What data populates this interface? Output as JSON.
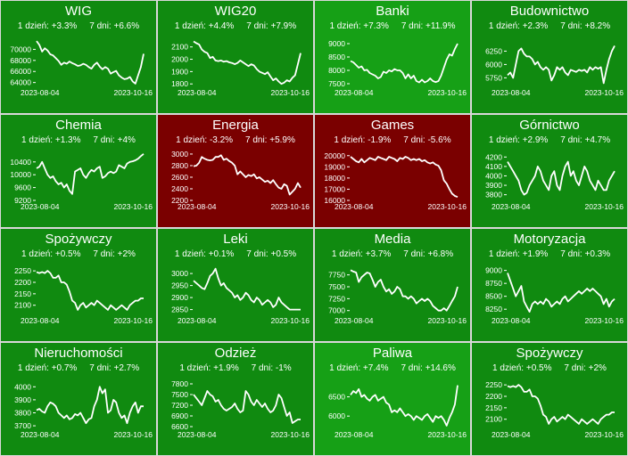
{
  "colors": {
    "green_dark": "#0b6b0b",
    "green_mid": "#0f8a0f",
    "green_bright": "#16a016",
    "red_dark": "#7a0000",
    "line": "#ffffff"
  },
  "labels": {
    "day_prefix": "1 dzień: ",
    "week_prefix": "7 dni: "
  },
  "chart_data": [
    {
      "type": "line",
      "title": "WIG",
      "change_1d": "+3.3%",
      "change_7d": "+6.6%",
      "color": "#108a10",
      "x_start": "2023-08-04",
      "x_end": "2023-10-16",
      "yticks": [
        64000,
        66000,
        68000,
        70000
      ],
      "ylim": [
        63300,
        72000
      ],
      "values": [
        71500,
        70800,
        69600,
        70200,
        69800,
        69100,
        68900,
        68400,
        67900,
        67200,
        67600,
        67400,
        67800,
        67500,
        67300,
        67000,
        67100,
        67400,
        67200,
        66800,
        66500,
        67200,
        67600,
        66900,
        66400,
        66800,
        66500,
        65600,
        65900,
        66100,
        65300,
        64900,
        64600,
        64700,
        65000,
        64200,
        63800,
        65300,
        66800,
        69200
      ]
    },
    {
      "type": "line",
      "title": "WIG20",
      "change_1d": "+4.4%",
      "change_7d": "+7.9%",
      "color": "#108a10",
      "x_start": "2023-08-04",
      "x_end": "2023-10-16",
      "yticks": [
        1800,
        1900,
        2000,
        2100
      ],
      "ylim": [
        1780,
        2170
      ],
      "values": [
        2145,
        2130,
        2120,
        2080,
        2060,
        2050,
        2010,
        2020,
        1990,
        1985,
        1990,
        1980,
        1985,
        1975,
        1970,
        1960,
        1970,
        1990,
        1975,
        1960,
        1945,
        1960,
        1950,
        1920,
        1900,
        1890,
        1880,
        1895,
        1860,
        1830,
        1845,
        1820,
        1800,
        1810,
        1830,
        1820,
        1850,
        1870,
        1960,
        2050
      ]
    },
    {
      "type": "line",
      "title": "Banki",
      "change_1d": "+7.3%",
      "change_7d": "+11.9%",
      "color": "#16a016",
      "x_start": "2023-08-04",
      "x_end": "2023-10-16",
      "yticks": [
        7500,
        8000,
        8500,
        9000
      ],
      "ylim": [
        7400,
        9200
      ],
      "values": [
        8350,
        8300,
        8200,
        8100,
        8150,
        8000,
        8020,
        7900,
        7850,
        7800,
        7700,
        7750,
        7950,
        7900,
        8000,
        7960,
        8050,
        8000,
        8000,
        7900,
        7700,
        7850,
        7700,
        7800,
        7600,
        7550,
        7650,
        7550,
        7600,
        7700,
        7600,
        7560,
        7600,
        7800,
        8100,
        8400,
        8600,
        8550,
        8800,
        9000
      ]
    },
    {
      "type": "line",
      "title": "Budownictwo",
      "change_1d": "+2.3%",
      "change_7d": "+8.2%",
      "color": "#108a10",
      "x_start": "2023-08-04",
      "x_end": "2023-10-16",
      "yticks": [
        5750,
        6000,
        6250
      ],
      "ylim": [
        5590,
        6490
      ],
      "values": [
        5800,
        5850,
        5750,
        6000,
        6250,
        6300,
        6200,
        6150,
        6150,
        6100,
        6000,
        6050,
        5950,
        5900,
        5950,
        5900,
        5700,
        5800,
        5950,
        5900,
        5950,
        5850,
        5800,
        5900,
        5880,
        5860,
        5900,
        5880,
        5900,
        5850,
        5950,
        5900,
        5950,
        5920,
        5950,
        5650,
        5900,
        6100,
        6250,
        6350
      ]
    },
    {
      "type": "line",
      "title": "Chemia",
      "change_1d": "+1.3%",
      "change_7d": "+4%",
      "color": "#108a10",
      "x_start": "2023-08-04",
      "x_end": "2023-10-16",
      "yticks": [
        9200,
        9600,
        10000,
        10400
      ],
      "ylim": [
        9200,
        10700
      ],
      "values": [
        10200,
        10250,
        10400,
        10200,
        10000,
        9900,
        9950,
        9800,
        9700,
        9750,
        9600,
        9700,
        9500,
        9400,
        10100,
        10150,
        10200,
        10000,
        9900,
        10050,
        10150,
        10100,
        10200,
        10250,
        9900,
        9950,
        10050,
        10100,
        10050,
        10100,
        10300,
        10250,
        10200,
        10350,
        10400,
        10420,
        10450,
        10500,
        10580,
        10650
      ]
    },
    {
      "type": "line",
      "title": "Energia",
      "change_1d": "-3.2%",
      "change_7d": "+5.9%",
      "color": "#7a0000",
      "x_start": "2023-08-04",
      "x_end": "2023-10-16",
      "yticks": [
        2200,
        2400,
        2600,
        2800,
        3000
      ],
      "ylim": [
        2200,
        3030
      ],
      "values": [
        2790,
        2800,
        2850,
        2950,
        2920,
        2900,
        2890,
        2900,
        2950,
        2950,
        2980,
        2900,
        2920,
        2880,
        2850,
        2800,
        2650,
        2700,
        2650,
        2600,
        2640,
        2620,
        2650,
        2580,
        2600,
        2560,
        2520,
        2540,
        2500,
        2550,
        2480,
        2420,
        2400,
        2480,
        2450,
        2300,
        2350,
        2400,
        2500,
        2420
      ]
    },
    {
      "type": "line",
      "title": "Games",
      "change_1d": "-1.9%",
      "change_7d": "-5.6%",
      "color": "#7a0000",
      "x_start": "2023-08-04",
      "x_end": "2023-10-16",
      "yticks": [
        16000,
        17000,
        18000,
        19000,
        20000
      ],
      "ylim": [
        16000,
        20300
      ],
      "values": [
        19900,
        19700,
        19500,
        19400,
        19700,
        19400,
        19600,
        19800,
        19700,
        19600,
        19900,
        19800,
        19700,
        19600,
        19900,
        19800,
        19700,
        19500,
        19800,
        19700,
        19900,
        19800,
        19600,
        19700,
        19600,
        19700,
        19500,
        19600,
        19400,
        19300,
        19400,
        19200,
        19100,
        18700,
        17800,
        17500,
        17000,
        16600,
        16400,
        16300
      ]
    },
    {
      "type": "line",
      "title": "Górnictwo",
      "change_1d": "+2.9%",
      "change_7d": "+4.7%",
      "color": "#108a10",
      "x_start": "2023-08-04",
      "x_end": "2023-10-16",
      "yticks": [
        3800,
        3900,
        4000,
        4100,
        4200
      ],
      "ylim": [
        3740,
        4250
      ],
      "values": [
        4150,
        4100,
        4050,
        4000,
        3950,
        3850,
        3800,
        3820,
        3900,
        3950,
        4000,
        4100,
        4050,
        3950,
        3900,
        3850,
        4000,
        4050,
        3900,
        3850,
        4000,
        4100,
        4150,
        4000,
        4050,
        3950,
        3900,
        4000,
        4100,
        4050,
        3950,
        3900,
        3850,
        3950,
        3900,
        3850,
        3850,
        3950,
        4000,
        4050
      ]
    },
    {
      "type": "line",
      "title": "Spożywczy",
      "change_1d": "+0.5%",
      "change_7d": "+2%",
      "color": "#108a10",
      "x_start": "2023-08-04",
      "x_end": "2023-10-16",
      "yticks": [
        2100,
        2150,
        2200,
        2250
      ],
      "ylim": [
        2060,
        2270
      ],
      "values": [
        2245,
        2240,
        2245,
        2240,
        2250,
        2240,
        2220,
        2220,
        2230,
        2200,
        2200,
        2190,
        2160,
        2120,
        2110,
        2080,
        2100,
        2110,
        2090,
        2100,
        2110,
        2100,
        2120,
        2110,
        2100,
        2090,
        2080,
        2100,
        2090,
        2080,
        2090,
        2100,
        2090,
        2080,
        2100,
        2110,
        2120,
        2120,
        2130,
        2130
      ]
    },
    {
      "type": "line",
      "title": "Leki",
      "change_1d": "+0.1%",
      "change_7d": "+0.5%",
      "color": "#108a10",
      "x_start": "2023-08-04",
      "x_end": "2023-10-16",
      "yticks": [
        2850,
        2900,
        2950,
        3000
      ],
      "ylim": [
        2830,
        3030
      ],
      "values": [
        2970,
        2960,
        2950,
        2940,
        2935,
        2960,
        2990,
        3000,
        3020,
        2980,
        2950,
        2960,
        2940,
        2930,
        2920,
        2900,
        2910,
        2890,
        2900,
        2920,
        2910,
        2890,
        2880,
        2900,
        2890,
        2870,
        2880,
        2890,
        2880,
        2860,
        2870,
        2900,
        2880,
        2870,
        2860,
        2850,
        2850,
        2850,
        2850,
        2850
      ]
    },
    {
      "type": "line",
      "title": "Media",
      "change_1d": "+3.7%",
      "change_7d": "+6.8%",
      "color": "#108a10",
      "x_start": "2023-08-04",
      "x_end": "2023-10-16",
      "yticks": [
        7000,
        7250,
        7500,
        7750
      ],
      "ylim": [
        6920,
        7930
      ],
      "values": [
        7850,
        7820,
        7800,
        7600,
        7700,
        7750,
        7800,
        7780,
        7650,
        7500,
        7600,
        7650,
        7500,
        7400,
        7450,
        7350,
        7400,
        7500,
        7450,
        7300,
        7300,
        7250,
        7300,
        7250,
        7150,
        7200,
        7250,
        7200,
        7250,
        7200,
        7100,
        7050,
        7000,
        7000,
        7050,
        7000,
        7100,
        7200,
        7300,
        7500
      ]
    },
    {
      "type": "line",
      "title": "Motoryzacja",
      "change_1d": "+1.9%",
      "change_7d": "+0.3%",
      "color": "#108a10",
      "x_start": "2023-08-04",
      "x_end": "2023-10-16",
      "yticks": [
        8250,
        8500,
        8750,
        9000
      ],
      "ylim": [
        8150,
        9080
      ],
      "values": [
        8950,
        8800,
        8650,
        8500,
        8600,
        8700,
        8400,
        8300,
        8200,
        8350,
        8400,
        8350,
        8400,
        8350,
        8450,
        8400,
        8300,
        8350,
        8400,
        8350,
        8450,
        8500,
        8400,
        8450,
        8500,
        8550,
        8600,
        8550,
        8600,
        8650,
        8600,
        8650,
        8600,
        8550,
        8500,
        8350,
        8450,
        8300,
        8400,
        8450
      ]
    },
    {
      "type": "line",
      "title": "Nieruchomości",
      "change_1d": "+0.7%",
      "change_7d": "+2.7%",
      "color": "#108a10",
      "x_start": "2023-08-04",
      "x_end": "2023-10-16",
      "yticks": [
        3700,
        3800,
        3900,
        4000
      ],
      "ylim": [
        3680,
        4050
      ],
      "values": [
        3820,
        3830,
        3810,
        3800,
        3850,
        3880,
        3870,
        3850,
        3800,
        3780,
        3760,
        3780,
        3750,
        3760,
        3790,
        3780,
        3800,
        3760,
        3720,
        3750,
        3760,
        3850,
        3900,
        4000,
        3950,
        3980,
        3800,
        3820,
        3900,
        3880,
        3800,
        3760,
        3780,
        3720,
        3800,
        3850,
        3880,
        3800,
        3850,
        3850
      ]
    },
    {
      "type": "line",
      "title": "Odzież",
      "change_1d": "+1.9%",
      "change_7d": "-1%",
      "color": "#108a10",
      "x_start": "2023-08-04",
      "x_end": "2023-10-16",
      "yticks": [
        6600,
        6900,
        7200,
        7500,
        7800
      ],
      "ylim": [
        6550,
        7900
      ],
      "values": [
        7500,
        7400,
        7300,
        7200,
        7400,
        7600,
        7500,
        7450,
        7300,
        7350,
        7200,
        7100,
        7050,
        7100,
        7150,
        7250,
        7100,
        7000,
        7050,
        7600,
        7500,
        7300,
        7200,
        7350,
        7250,
        7150,
        7250,
        7100,
        7000,
        7050,
        7200,
        7500,
        7400,
        7150,
        6900,
        7000,
        6700,
        6750,
        6800,
        6800
      ]
    },
    {
      "type": "line",
      "title": "Paliwa",
      "change_1d": "+7.4%",
      "change_7d": "+14.6%",
      "color": "#16a016",
      "x_start": "2023-08-04",
      "x_end": "2023-10-16",
      "yticks": [
        6000,
        6500
      ],
      "ylim": [
        5680,
        6930
      ],
      "values": [
        6550,
        6650,
        6600,
        6700,
        6500,
        6550,
        6450,
        6400,
        6500,
        6550,
        6400,
        6450,
        6500,
        6350,
        6300,
        6100,
        6150,
        6100,
        6200,
        6100,
        6000,
        6050,
        6000,
        5900,
        6000,
        5950,
        5900,
        6000,
        6050,
        5950,
        5850,
        6000,
        5950,
        6000,
        5900,
        5750,
        5950,
        6100,
        6300,
        6800
      ]
    },
    {
      "type": "line",
      "title": "Spożywczy",
      "change_1d": "+0.5%",
      "change_7d": "+2%",
      "color": "#108a10",
      "x_start": "2023-08-04",
      "x_end": "2023-10-16",
      "yticks": [
        2100,
        2150,
        2200,
        2250
      ],
      "ylim": [
        2060,
        2270
      ],
      "values": [
        2245,
        2240,
        2245,
        2240,
        2250,
        2240,
        2220,
        2220,
        2230,
        2200,
        2200,
        2190,
        2160,
        2120,
        2110,
        2080,
        2100,
        2110,
        2090,
        2100,
        2110,
        2100,
        2120,
        2110,
        2100,
        2090,
        2080,
        2100,
        2090,
        2080,
        2090,
        2100,
        2090,
        2080,
        2100,
        2110,
        2120,
        2120,
        2130,
        2130
      ]
    }
  ]
}
